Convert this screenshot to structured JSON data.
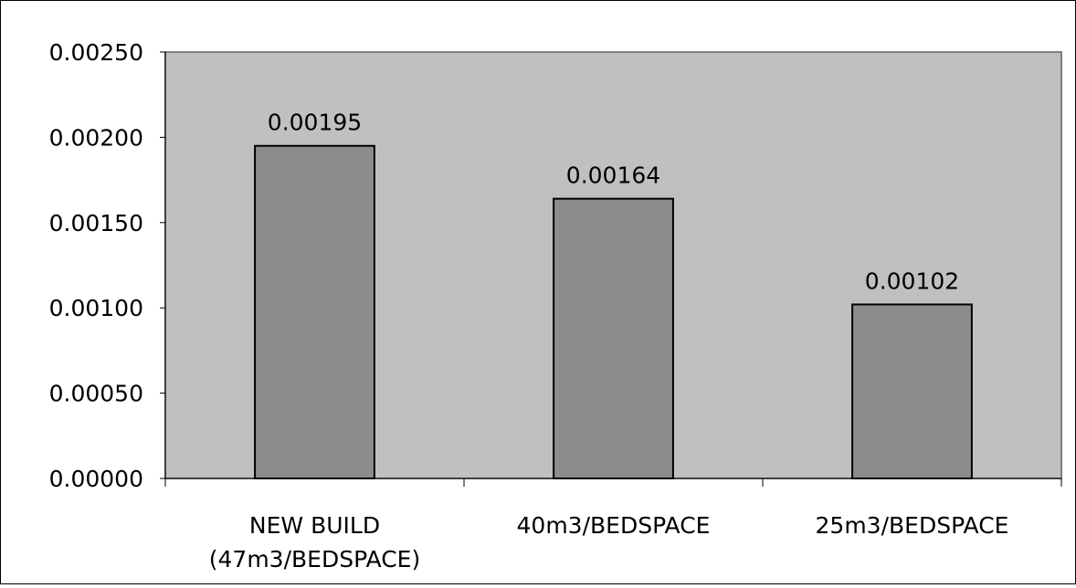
{
  "chart_data": {
    "type": "bar",
    "title": "",
    "xlabel": "",
    "ylabel": "",
    "categories": [
      [
        "NEW BUILD",
        "(47m3/BEDSPACE)"
      ],
      [
        "40m3/BEDSPACE"
      ],
      [
        "25m3/BEDSPACE"
      ]
    ],
    "values": [
      0.00195,
      0.00164,
      0.00102
    ],
    "data_labels": [
      "0.00195",
      "0.00164",
      "0.00102"
    ],
    "ylim": [
      0,
      0.0025
    ],
    "yticks": [
      0.0,
      0.0005,
      0.001,
      0.0015,
      0.002,
      0.0025
    ],
    "ytick_labels": [
      "0.00000",
      "0.00050",
      "0.00100",
      "0.00150",
      "0.00200",
      "0.00250"
    ],
    "grid": false,
    "legend": "none",
    "colors": {
      "plot_background": "#c0c0c0",
      "bar_fill": "#8c8c8c",
      "bar_stroke": "#000000",
      "plot_border": "#808080"
    }
  }
}
